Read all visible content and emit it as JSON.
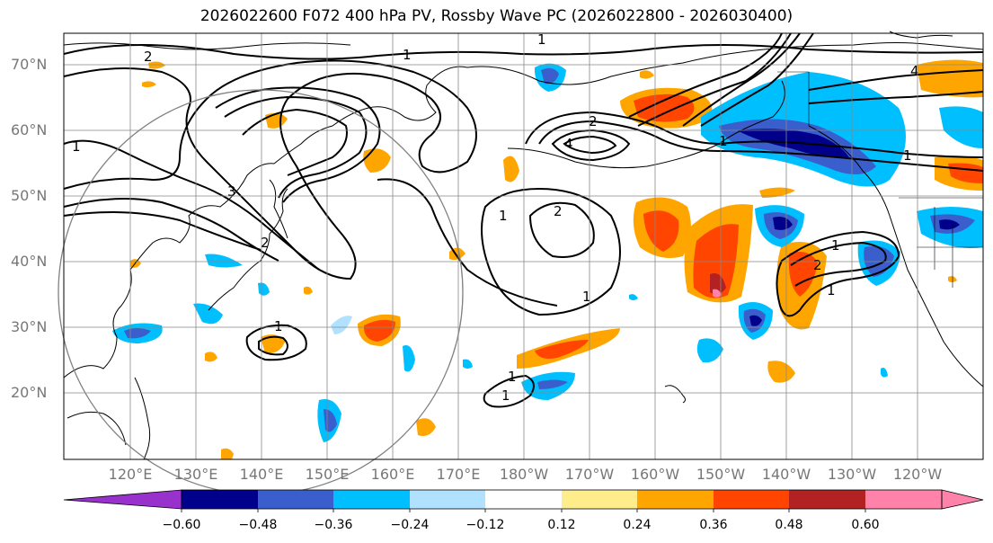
{
  "title": "2026022600 F072 400 hPa PV, Rossby Wave PC (2026022800 - 2026030400)",
  "lat_labels": [
    "70°N",
    "60°N",
    "50°N",
    "40°N",
    "30°N",
    "20°N"
  ],
  "lon_labels": [
    "120°E",
    "130°E",
    "140°E",
    "150°E",
    "160°E",
    "170°E",
    "180°W",
    "170°W",
    "160°W",
    "150°W",
    "140°W",
    "130°W",
    "120°W"
  ],
  "contour_labels": [
    "1",
    "2",
    "3",
    "4"
  ],
  "colorbar": {
    "ticks": [
      "−0.60",
      "−0.48",
      "−0.36",
      "−0.24",
      "−0.12",
      "0.12",
      "0.24",
      "0.36",
      "0.48",
      "0.60"
    ],
    "colors": [
      "#9932cc",
      "#00008b",
      "#3a5fcd",
      "#00bfff",
      "#b0e2ff",
      "#ffffff",
      "#ffec8b",
      "#ffa500",
      "#ff4500",
      "#b22222",
      "#ff82ab"
    ]
  }
}
